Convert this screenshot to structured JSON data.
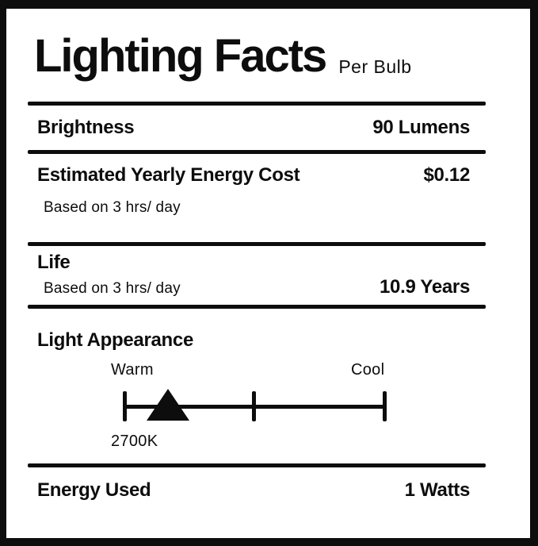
{
  "colors": {
    "ink": "#0d0d0d",
    "background": "#ffffff"
  },
  "header": {
    "title": "Lighting Facts",
    "subtitle": "Per Bulb"
  },
  "brightness": {
    "label": "Brightness",
    "value": "90 Lumens"
  },
  "energy_cost": {
    "label": "Estimated Yearly Energy Cost",
    "value": "$0.12",
    "note": "Based on 3 hrs/ day"
  },
  "life": {
    "label": "Life",
    "note": "Based on 3 hrs/ day",
    "value": "10.9 Years"
  },
  "light_appearance": {
    "label": "Light Appearance",
    "warm_label": "Warm",
    "cool_label": "Cool",
    "marker_value": "2700K",
    "scale": {
      "ticks": 3,
      "marker_position_percent": 17
    }
  },
  "energy_used": {
    "label": "Energy Used",
    "value": "1 Watts"
  }
}
